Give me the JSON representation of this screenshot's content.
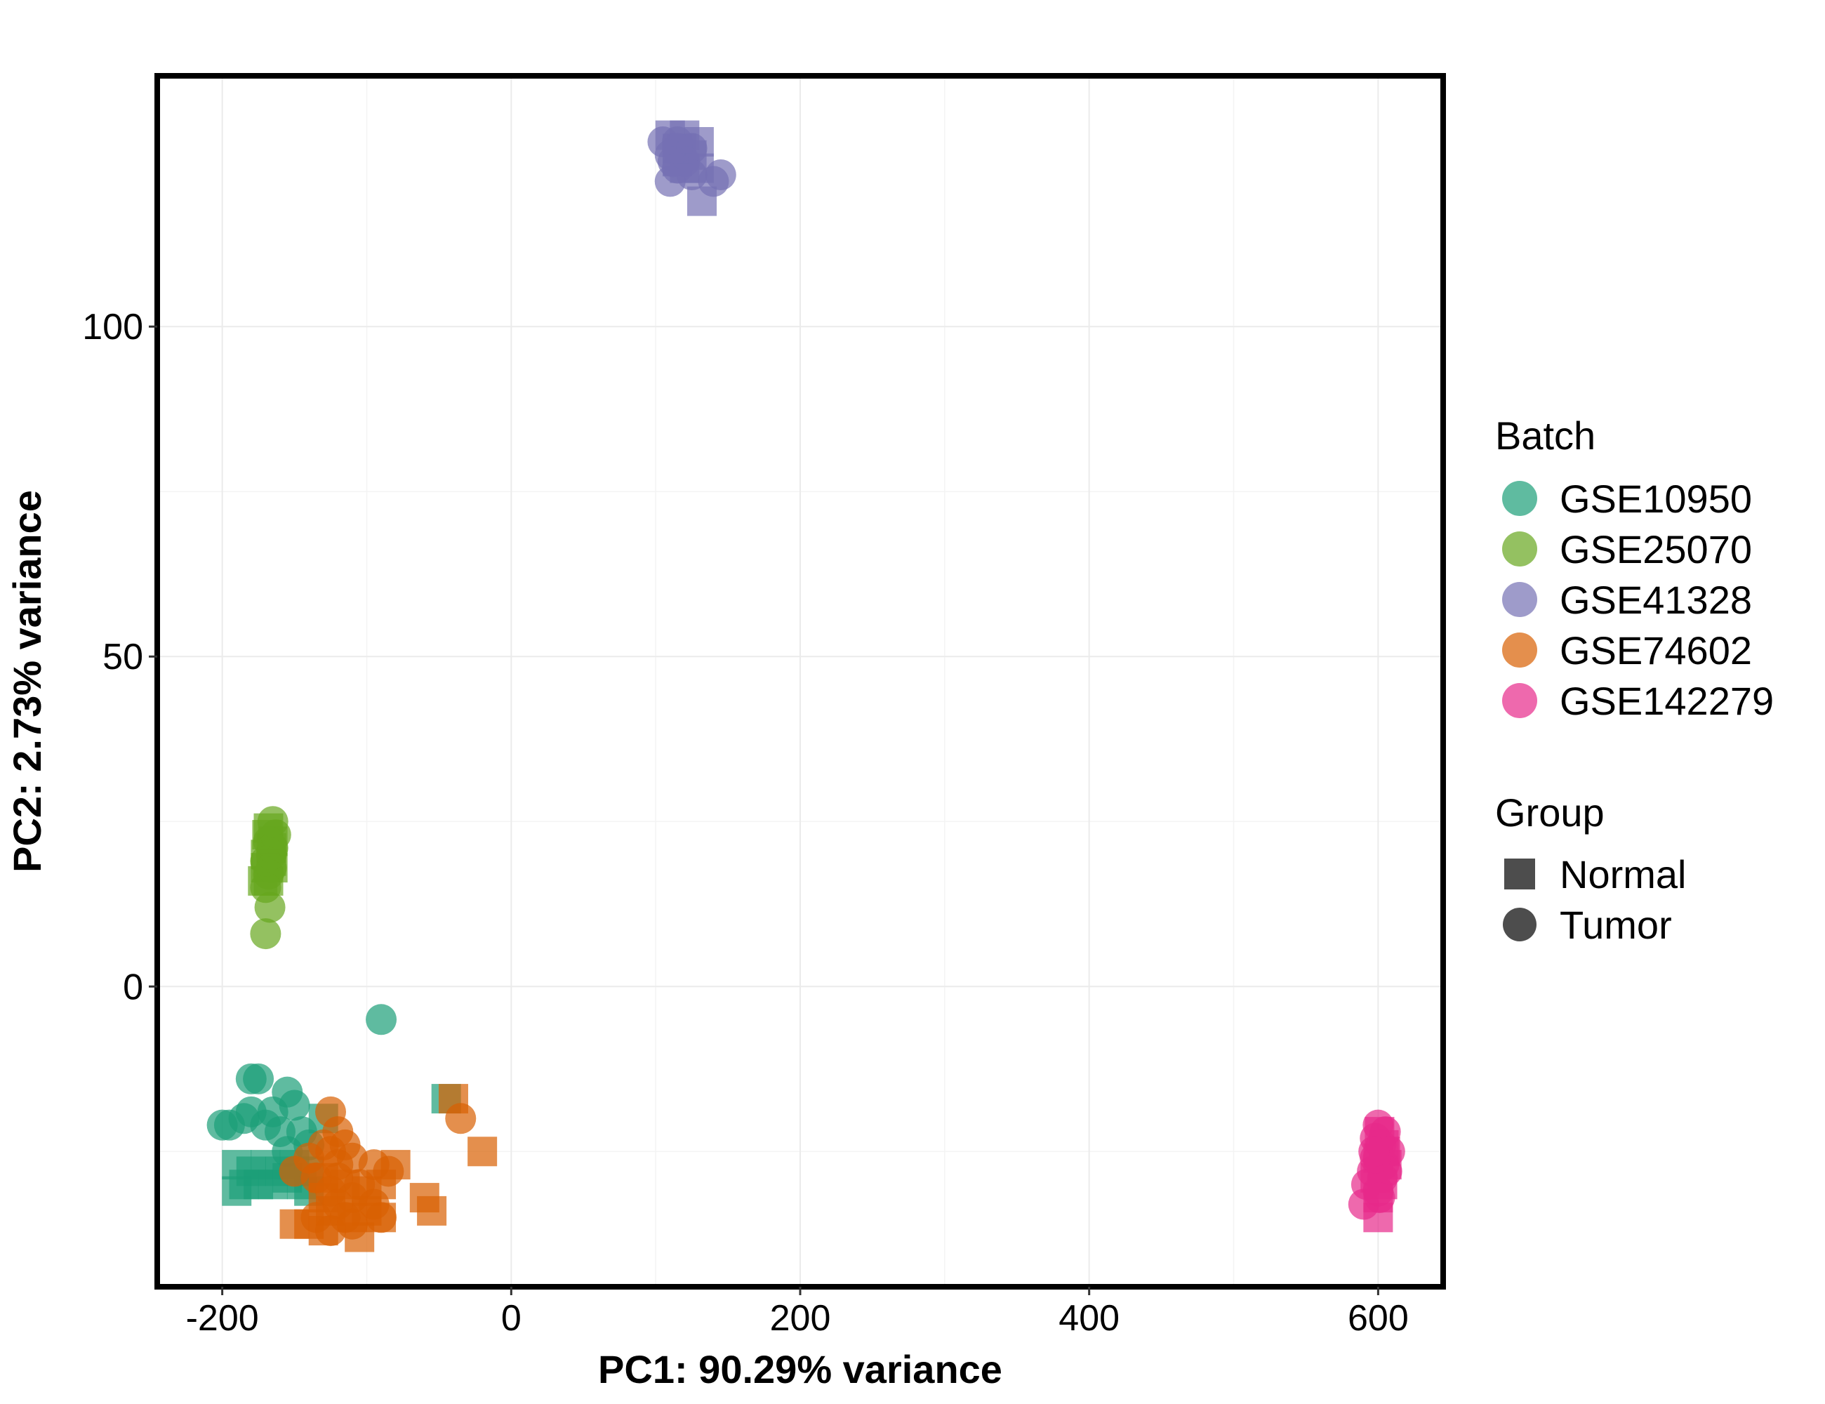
{
  "chart_data": {
    "type": "scatter",
    "xlabel": "PC1: 90.29% variance",
    "ylabel": "PC2: 2.73% variance",
    "xlim": [
      -245,
      645
    ],
    "ylim": [
      -45.5,
      138
    ],
    "x_ticks": [
      -200,
      0,
      200,
      400,
      600
    ],
    "y_ticks": [
      0,
      50,
      100
    ],
    "x_tick_labels": [
      "-200",
      "0",
      "200",
      "400",
      "600"
    ],
    "y_tick_labels": [
      "0",
      "50",
      "100"
    ],
    "grid": true,
    "legend_position": "right",
    "legend": {
      "batch_title": "Batch",
      "batch_items": [
        {
          "name": "GSE10950",
          "color": "#1b9e77"
        },
        {
          "name": "GSE25070",
          "color": "#66a61e"
        },
        {
          "name": "GSE41328",
          "color": "#7570b3"
        },
        {
          "name": "GSE74602",
          "color": "#d95f02"
        },
        {
          "name": "GSE142279",
          "color": "#e7298a"
        }
      ],
      "group_title": "Group",
      "group_items": [
        {
          "name": "Normal",
          "shape": "square"
        },
        {
          "name": "Tumor",
          "shape": "circle"
        }
      ]
    },
    "series": [
      {
        "batch": "GSE10950",
        "color": "#1b9e77",
        "tumor": [
          [
            -90,
            -5
          ],
          [
            -180,
            -14
          ],
          [
            -175,
            -14
          ],
          [
            -155,
            -16
          ],
          [
            -150,
            -18
          ],
          [
            -180,
            -19
          ],
          [
            -165,
            -19
          ],
          [
            -200,
            -21
          ],
          [
            -195,
            -21
          ],
          [
            -185,
            -20
          ],
          [
            -170,
            -21
          ],
          [
            -160,
            -22
          ],
          [
            -145,
            -22
          ],
          [
            -155,
            -25
          ],
          [
            -140,
            -24
          ]
        ],
        "normal": [
          [
            -45,
            -17
          ],
          [
            -190,
            -27
          ],
          [
            -180,
            -28
          ],
          [
            -170,
            -27
          ],
          [
            -160,
            -28
          ],
          [
            -150,
            -27
          ],
          [
            -140,
            -28
          ],
          [
            -185,
            -30
          ],
          [
            -175,
            -30
          ],
          [
            -130,
            -20
          ],
          [
            -145,
            -30
          ],
          [
            -190,
            -31
          ],
          [
            -165,
            -30
          ],
          [
            -155,
            -29
          ],
          [
            -140,
            -31
          ]
        ]
      },
      {
        "batch": "GSE25070",
        "color": "#66a61e",
        "tumor": [
          [
            -165,
            25
          ],
          [
            -163,
            23
          ],
          [
            -168,
            22
          ],
          [
            -165,
            21
          ],
          [
            -170,
            19
          ],
          [
            -166,
            18
          ],
          [
            -168,
            17
          ],
          [
            -170,
            15
          ],
          [
            -167,
            12
          ],
          [
            -170,
            8
          ],
          [
            -166,
            20
          ]
        ],
        "normal": [
          [
            -168,
            24
          ],
          [
            -165,
            22
          ],
          [
            -170,
            20
          ],
          [
            -166,
            19
          ],
          [
            -170,
            18
          ],
          [
            -165,
            18
          ],
          [
            -168,
            16
          ],
          [
            -172,
            16
          ],
          [
            -166,
            21
          ],
          [
            -169,
            23
          ]
        ]
      },
      {
        "batch": "GSE41328",
        "color": "#7570b3",
        "tumor": [
          [
            105,
            128
          ],
          [
            115,
            128
          ],
          [
            125,
            127
          ],
          [
            110,
            126
          ],
          [
            120,
            125
          ],
          [
            115,
            124
          ],
          [
            125,
            123
          ],
          [
            110,
            122
          ],
          [
            140,
            122
          ],
          [
            145,
            123
          ],
          [
            115,
            127
          ],
          [
            112,
            125
          ]
        ],
        "normal": [
          [
            110,
            129
          ],
          [
            120,
            129
          ],
          [
            130,
            128
          ],
          [
            115,
            127
          ],
          [
            125,
            126
          ],
          [
            120,
            124
          ],
          [
            130,
            124
          ],
          [
            115,
            125
          ],
          [
            132,
            119
          ],
          [
            118,
            127
          ]
        ]
      },
      {
        "batch": "GSE74602",
        "color": "#d95f02",
        "tumor": [
          [
            -125,
            -19
          ],
          [
            -35,
            -20
          ],
          [
            -120,
            -22
          ],
          [
            -130,
            -24
          ],
          [
            -115,
            -24
          ],
          [
            -125,
            -25
          ],
          [
            -140,
            -26
          ],
          [
            -110,
            -26
          ],
          [
            -95,
            -27
          ],
          [
            -120,
            -27
          ],
          [
            -150,
            -28
          ],
          [
            -85,
            -28
          ],
          [
            -135,
            -29
          ],
          [
            -120,
            -29
          ],
          [
            -105,
            -30
          ],
          [
            -125,
            -31
          ],
          [
            -110,
            -32
          ],
          [
            -120,
            -33
          ],
          [
            -95,
            -33
          ],
          [
            -135,
            -35
          ],
          [
            -115,
            -35
          ],
          [
            -90,
            -35
          ],
          [
            -125,
            -37
          ],
          [
            -110,
            -36
          ]
        ],
        "normal": [
          [
            -40,
            -17
          ],
          [
            -20,
            -25
          ],
          [
            -80,
            -27
          ],
          [
            -130,
            -29
          ],
          [
            -115,
            -30
          ],
          [
            -100,
            -31
          ],
          [
            -90,
            -30
          ],
          [
            -60,
            -32
          ],
          [
            -130,
            -32
          ],
          [
            -100,
            -34
          ],
          [
            -55,
            -34
          ],
          [
            -125,
            -34
          ],
          [
            -140,
            -36
          ],
          [
            -90,
            -35
          ],
          [
            -110,
            -35
          ],
          [
            -150,
            -36
          ],
          [
            -130,
            -37
          ],
          [
            -105,
            -38
          ]
        ]
      },
      {
        "batch": "GSE142279",
        "color": "#e7298a",
        "tumor": [
          [
            600,
            -21
          ],
          [
            605,
            -22
          ],
          [
            598,
            -23
          ],
          [
            602,
            -24
          ],
          [
            608,
            -25
          ],
          [
            600,
            -26
          ],
          [
            604,
            -27
          ],
          [
            596,
            -28
          ],
          [
            603,
            -29
          ],
          [
            592,
            -30
          ],
          [
            600,
            -31
          ],
          [
            606,
            -28
          ],
          [
            598,
            -26
          ],
          [
            590,
            -33
          ],
          [
            601,
            -32
          ],
          [
            597,
            -25
          ]
        ],
        "normal": [
          [
            601,
            -22
          ],
          [
            604,
            -24
          ],
          [
            600,
            -26
          ],
          [
            606,
            -27
          ],
          [
            598,
            -29
          ],
          [
            603,
            -30
          ],
          [
            600,
            -32
          ],
          [
            600,
            -35
          ],
          [
            605,
            -25
          ]
        ]
      }
    ]
  }
}
